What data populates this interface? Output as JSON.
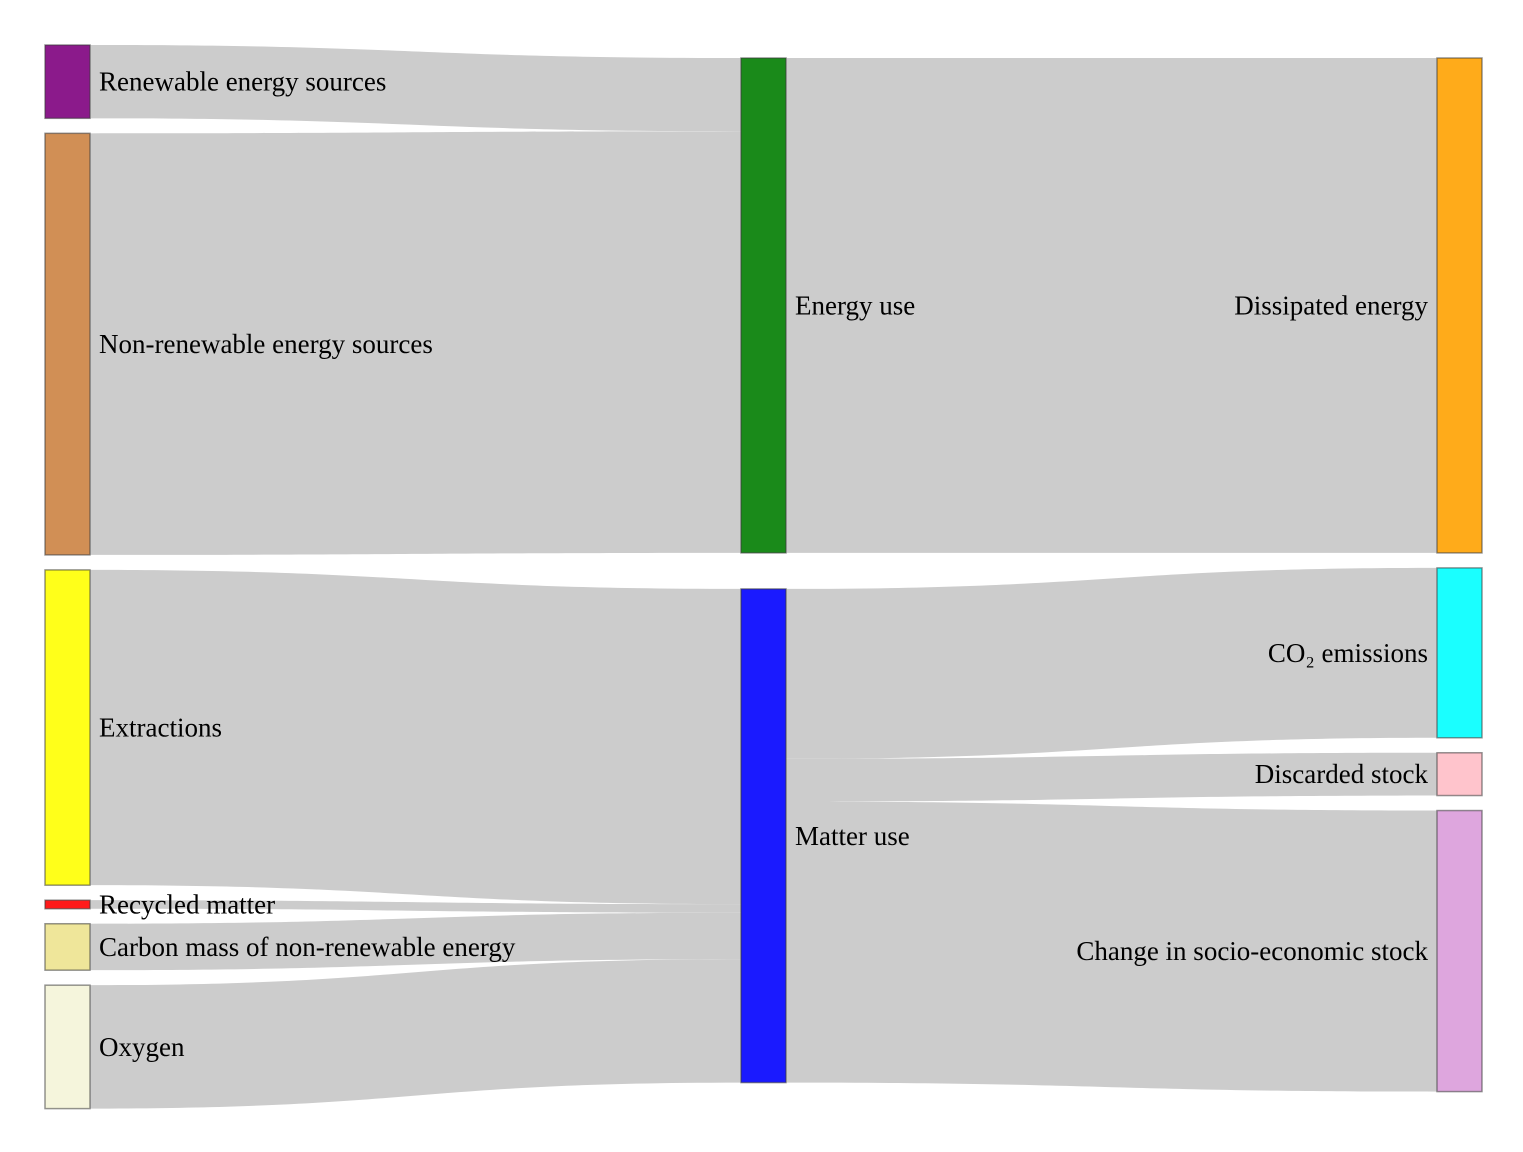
{
  "diagram": {
    "type": "sankey",
    "link_color": "#cccccc",
    "nodes": [
      {
        "id": "renewable",
        "label": "Renewable energy sources",
        "color": "#8b1a8b",
        "column": "left",
        "value": 60
      },
      {
        "id": "nonrenewable",
        "label": "Non-renewable energy sources",
        "color": "#d18f55",
        "column": "left",
        "value": 345
      },
      {
        "id": "extractions",
        "label": "Extractions",
        "color": "#ffff1a",
        "column": "left",
        "value": 258
      },
      {
        "id": "recycled",
        "label": "Recycled matter",
        "color": "#ff1a1a",
        "column": "left",
        "value": 7
      },
      {
        "id": "carbon",
        "label": "Carbon mass of non-renewable energy",
        "color": "#efe69a",
        "column": "left",
        "value": 38
      },
      {
        "id": "oxygen",
        "label": "Oxygen",
        "color": "#f5f5dc",
        "column": "left",
        "value": 101
      },
      {
        "id": "energy_use",
        "label": "Energy use",
        "color": "#1a8a1a",
        "column": "middle",
        "value": 405
      },
      {
        "id": "matter_use",
        "label": "Matter use",
        "color": "#1a1aff",
        "column": "middle",
        "value": 404
      },
      {
        "id": "dissipated",
        "label": "Dissipated energy",
        "color": "#ffab1a",
        "column": "right",
        "value": 405
      },
      {
        "id": "co2",
        "label": "CO₂ emissions",
        "color": "#1affff",
        "column": "right",
        "value": 139
      },
      {
        "id": "discarded",
        "label": "Discarded stock",
        "color": "#ffc4cc",
        "column": "right",
        "value": 35
      },
      {
        "id": "stock",
        "label": "Change in socio-economic stock",
        "color": "#dea6de",
        "column": "right",
        "value": 230
      }
    ],
    "links": [
      {
        "source": "renewable",
        "target": "energy_use",
        "value": 60
      },
      {
        "source": "nonrenewable",
        "target": "energy_use",
        "value": 345
      },
      {
        "source": "extractions",
        "target": "matter_use",
        "value": 258
      },
      {
        "source": "recycled",
        "target": "matter_use",
        "value": 7
      },
      {
        "source": "carbon",
        "target": "matter_use",
        "value": 38
      },
      {
        "source": "oxygen",
        "target": "matter_use",
        "value": 101
      },
      {
        "source": "energy_use",
        "target": "dissipated",
        "value": 405
      },
      {
        "source": "matter_use",
        "target": "co2",
        "value": 139
      },
      {
        "source": "matter_use",
        "target": "discarded",
        "value": 35
      },
      {
        "source": "matter_use",
        "target": "stock",
        "value": 230
      }
    ]
  }
}
